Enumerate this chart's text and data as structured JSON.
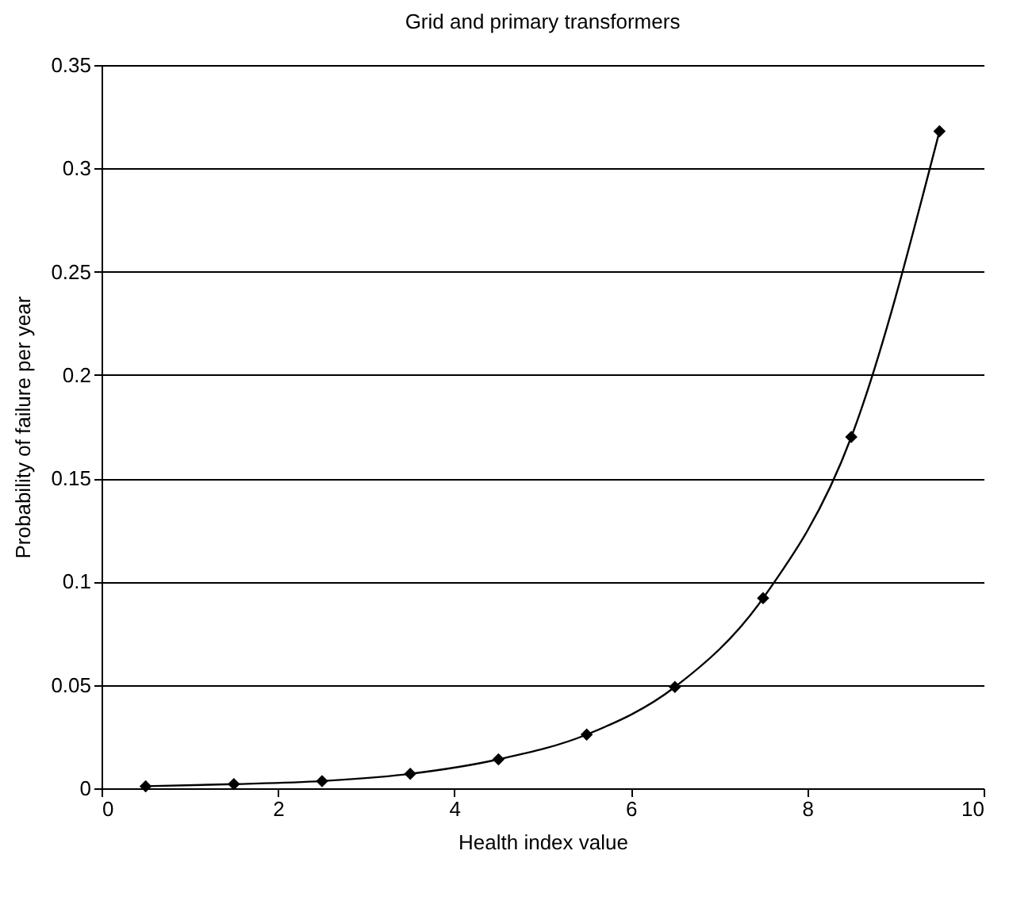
{
  "chart_data": {
    "type": "line",
    "title": "Grid and primary transformers",
    "xlabel": "Health index value",
    "ylabel": "Probability of failure per year",
    "x": [
      0.5,
      1.5,
      2.5,
      3.5,
      4.5,
      5.5,
      6.5,
      7.5,
      8.5,
      9.5
    ],
    "series": [
      {
        "color": "#000000",
        "values": [
          0.001,
          0.002,
          0.0035,
          0.007,
          0.014,
          0.026,
          0.049,
          0.092,
          0.17,
          0.318
        ]
      }
    ],
    "xlim": [
      0,
      10
    ],
    "xticks": [
      0,
      2,
      4,
      6,
      8,
      10
    ],
    "ylim": [
      0,
      0.35
    ],
    "yticks": [
      0,
      0.05,
      0.1,
      0.15,
      0.2,
      0.25,
      0.3,
      0.35
    ],
    "grid": "y",
    "marker": "diamond",
    "line_style": "solid",
    "legend": false
  }
}
